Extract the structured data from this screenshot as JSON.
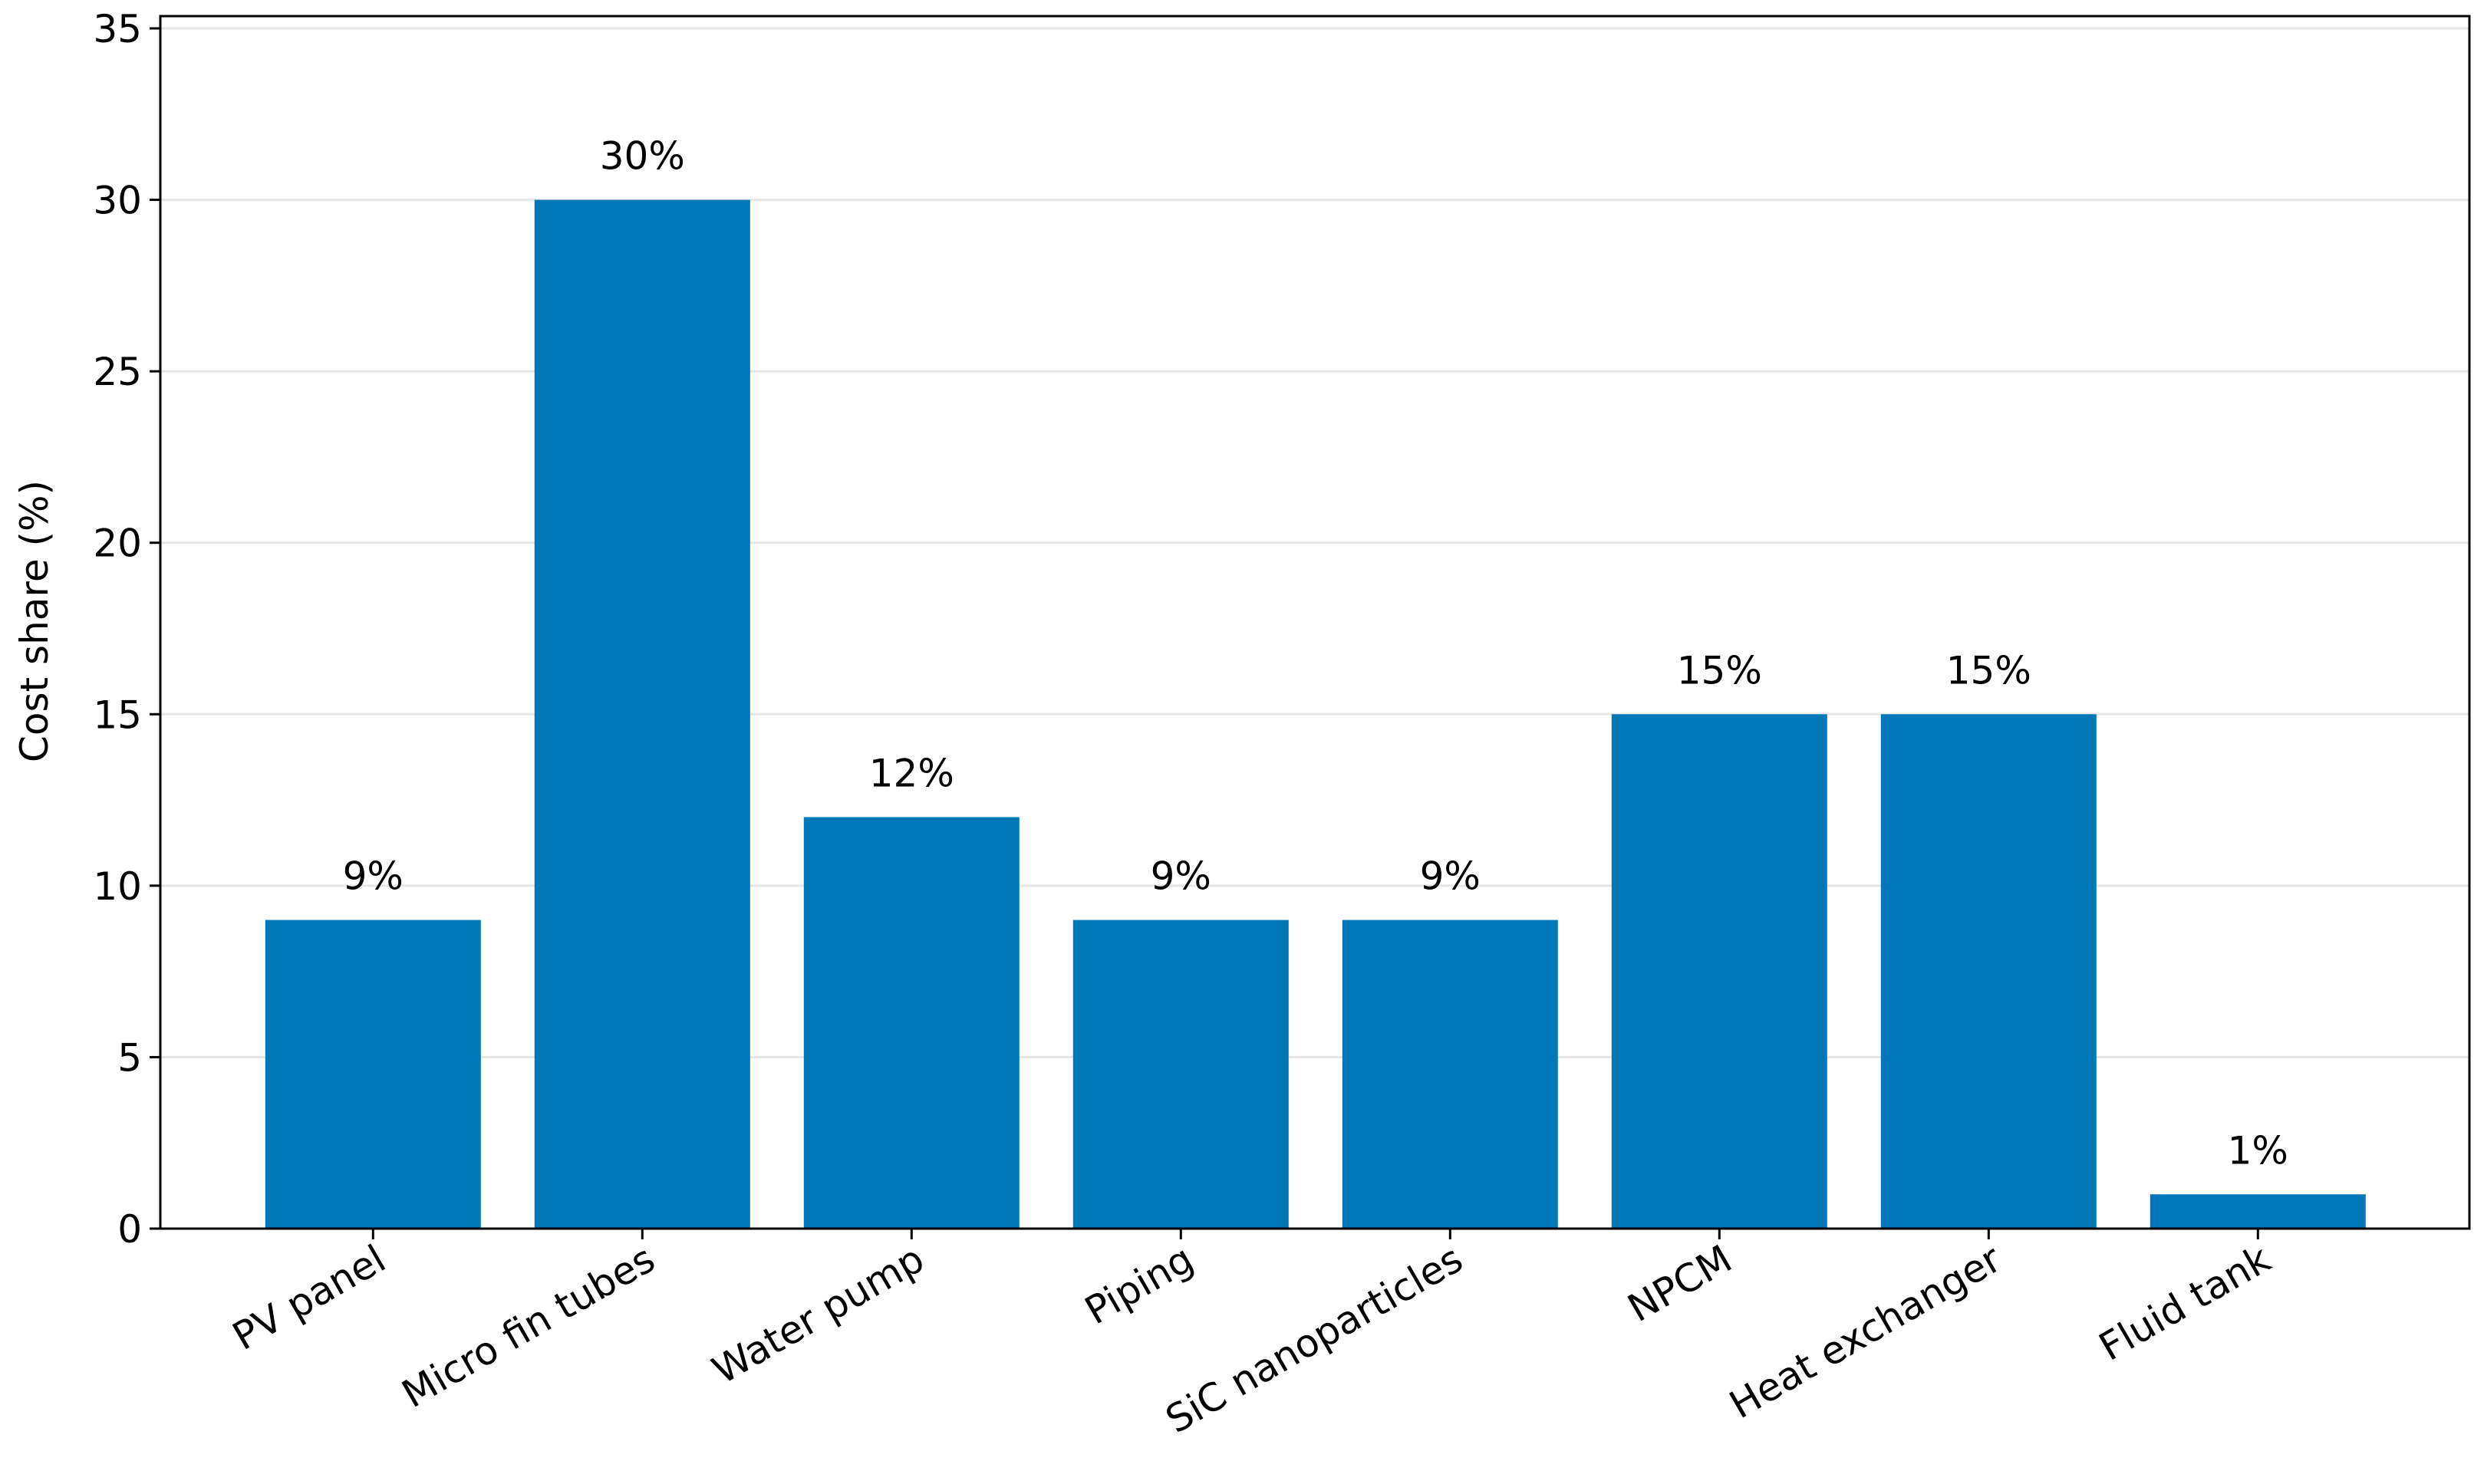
{
  "chart_data": {
    "type": "bar",
    "ylabel": "Cost share (%)",
    "categories": [
      "PV panel",
      "Micro fin tubes",
      "Water pump",
      "Piping",
      "SiC nanoparticles",
      "NPCM",
      "Heat exchanger",
      "Fluid tank"
    ],
    "values": [
      9,
      30,
      12,
      9,
      9,
      15,
      15,
      1
    ],
    "value_labels": [
      "9%",
      "30%",
      "12%",
      "9%",
      "9%",
      "15%",
      "15%",
      "1%"
    ],
    "color": "#0077b6",
    "ylim": [
      0,
      35
    ],
    "yticks": [
      0,
      5,
      10,
      15,
      20,
      25,
      30,
      35
    ],
    "grid": true
  }
}
